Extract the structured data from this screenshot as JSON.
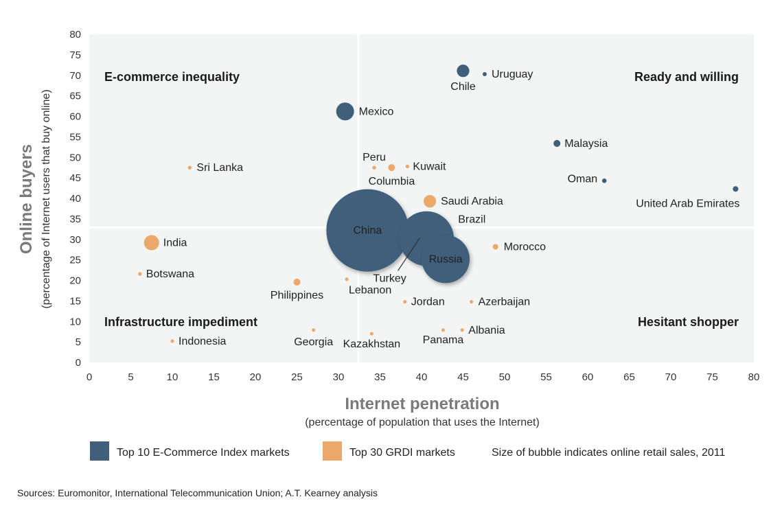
{
  "chart_data": {
    "type": "scatter",
    "subtype": "bubble",
    "xlabel": "Internet penetration",
    "xlabel_sub": "(percentage of population that uses the Internet)",
    "ylabel": "Online buyers",
    "ylabel_sub": "(percentage of Internet users that buy online)",
    "xlim": [
      0,
      80
    ],
    "ylim": [
      0,
      80
    ],
    "xticks": [
      "0",
      "5",
      "10",
      "15",
      "20",
      "25",
      "30",
      "35",
      "40",
      "45",
      "50",
      "55",
      "60",
      "65",
      "70",
      "75",
      "80"
    ],
    "yticks": [
      "0",
      "5",
      "10",
      "15",
      "20",
      "25",
      "30",
      "35",
      "40",
      "45",
      "50",
      "55",
      "60",
      "65",
      "70",
      "75",
      "80"
    ],
    "grid": false,
    "quadrant_dividers": {
      "x": 32.4,
      "y": 32.9
    },
    "quadrants": {
      "top_left": "E-commerce inequality",
      "top_right": "Ready and willing",
      "bottom_left": "Infrastructure impediment",
      "bottom_right": "Hesitant shopper"
    },
    "colors": {
      "top10": "#3f5f7a",
      "grdi": "#eba86a",
      "plot_bg": "#f3f4f4"
    },
    "legend": {
      "placement": "bottom",
      "items": [
        {
          "key": "top10",
          "label": "Top 10 E-Commerce Index markets"
        },
        {
          "key": "grdi",
          "label": "Top 30 GRDI markets"
        }
      ],
      "size_note": "Size of bubble indicates online retail sales, 2011"
    },
    "size_units": "relative online retail sales (China = 100)",
    "points": [
      {
        "label": "Chile",
        "x": 45.0,
        "y": 71.1,
        "group": "top10",
        "size": 2.3
      },
      {
        "label": "Uruguay",
        "x": 47.6,
        "y": 70.3,
        "group": "top10",
        "size": 0.25
      },
      {
        "label": "Mexico",
        "x": 30.8,
        "y": 61.2,
        "group": "top10",
        "size": 4.7
      },
      {
        "label": "Malaysia",
        "x": 56.3,
        "y": 53.4,
        "group": "top10",
        "size": 0.7
      },
      {
        "label": "Oman",
        "x": 62.0,
        "y": 44.3,
        "group": "top10",
        "size": 0.3
      },
      {
        "label": "United Arab Emirates",
        "x": 77.8,
        "y": 42.3,
        "group": "top10",
        "size": 0.45
      },
      {
        "label": "Sri Lanka",
        "x": 12.1,
        "y": 47.5,
        "group": "grdi",
        "size": 0.2
      },
      {
        "label": "Peru",
        "x": 34.3,
        "y": 47.5,
        "group": "grdi",
        "size": 0.2
      },
      {
        "label": "Columbia",
        "x": 36.4,
        "y": 47.5,
        "group": "grdi",
        "size": 0.7
      },
      {
        "label": "Kuwait",
        "x": 38.3,
        "y": 47.8,
        "group": "grdi",
        "size": 0.2
      },
      {
        "label": "Saudi Arabia",
        "x": 41.0,
        "y": 39.3,
        "group": "grdi",
        "size": 2.3
      },
      {
        "label": "China",
        "x": 33.5,
        "y": 32.2,
        "group": "top10",
        "size": 100
      },
      {
        "label": "Brazil",
        "x": 40.6,
        "y": 30.2,
        "group": "top10",
        "size": 44
      },
      {
        "label": "Russia",
        "x": 42.9,
        "y": 25.2,
        "group": "top10",
        "size": 34
      },
      {
        "label": "Turkey",
        "x": 39.8,
        "y": 30.4,
        "group": "top10",
        "size": 4.7
      },
      {
        "label": "Morocco",
        "x": 48.9,
        "y": 28.2,
        "group": "grdi",
        "size": 0.45
      },
      {
        "label": "India",
        "x": 7.5,
        "y": 29.2,
        "group": "grdi",
        "size": 3.4
      },
      {
        "label": "Botswana",
        "x": 6.1,
        "y": 21.6,
        "group": "grdi",
        "size": 0.2
      },
      {
        "label": "Philippines",
        "x": 25.0,
        "y": 19.6,
        "group": "grdi",
        "size": 0.7
      },
      {
        "label": "Lebanon",
        "x": 31.0,
        "y": 20.3,
        "group": "grdi",
        "size": 0.17
      },
      {
        "label": "Jordan",
        "x": 38.0,
        "y": 14.8,
        "group": "grdi",
        "size": 0.17
      },
      {
        "label": "Azerbaijan",
        "x": 46.0,
        "y": 14.8,
        "group": "grdi",
        "size": 0.17
      },
      {
        "label": "Georgia",
        "x": 27.0,
        "y": 7.9,
        "group": "grdi",
        "size": 0.17
      },
      {
        "label": "Kazakhstan",
        "x": 34.0,
        "y": 7.0,
        "group": "grdi",
        "size": 0.17
      },
      {
        "label": "Panama",
        "x": 42.6,
        "y": 7.9,
        "group": "grdi",
        "size": 0.17
      },
      {
        "label": "Albania",
        "x": 44.9,
        "y": 7.9,
        "group": "grdi",
        "size": 0.17
      },
      {
        "label": "Indonesia",
        "x": 10.0,
        "y": 5.2,
        "group": "grdi",
        "size": 0.17
      }
    ]
  },
  "source": "Sources: Euromonitor, International Telecommunication Union; A.T. Kearney analysis"
}
